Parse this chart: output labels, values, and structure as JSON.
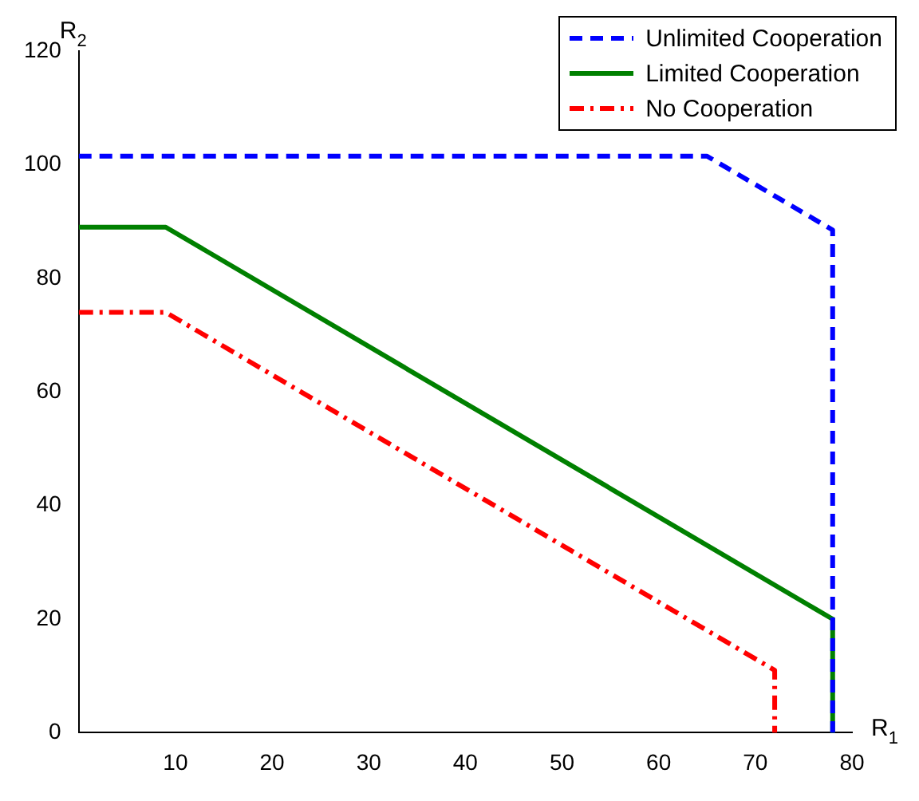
{
  "chart_data": {
    "type": "line",
    "xlabel": "R$_{1}$",
    "ylabel": "R$_{2}$",
    "xlim": [
      0,
      80
    ],
    "xticks": [
      10,
      20,
      30,
      40,
      50,
      60,
      70,
      80
    ],
    "ylim": [
      0,
      120
    ],
    "yticks": [
      0,
      20,
      40,
      60,
      80,
      100,
      120
    ],
    "grid": false,
    "legend": "top right",
    "marker": "none",
    "series": [
      {
        "name": "Unlimited Cooperation",
        "color": "#0000ff",
        "line_style": "dashed",
        "x": [
          0,
          65,
          78,
          78
        ],
        "values": [
          101.5,
          101.5,
          88.5,
          0
        ]
      },
      {
        "name": "Limited Cooperation",
        "color": "#008000",
        "line_style": "solid",
        "x": [
          0,
          9,
          78,
          78
        ],
        "values": [
          89,
          89,
          20,
          0
        ]
      },
      {
        "name": "No Cooperation",
        "color": "#ff0000",
        "line_style": "dashdot",
        "x": [
          0,
          9,
          72,
          72
        ],
        "values": [
          74,
          74,
          11,
          0
        ]
      }
    ]
  }
}
